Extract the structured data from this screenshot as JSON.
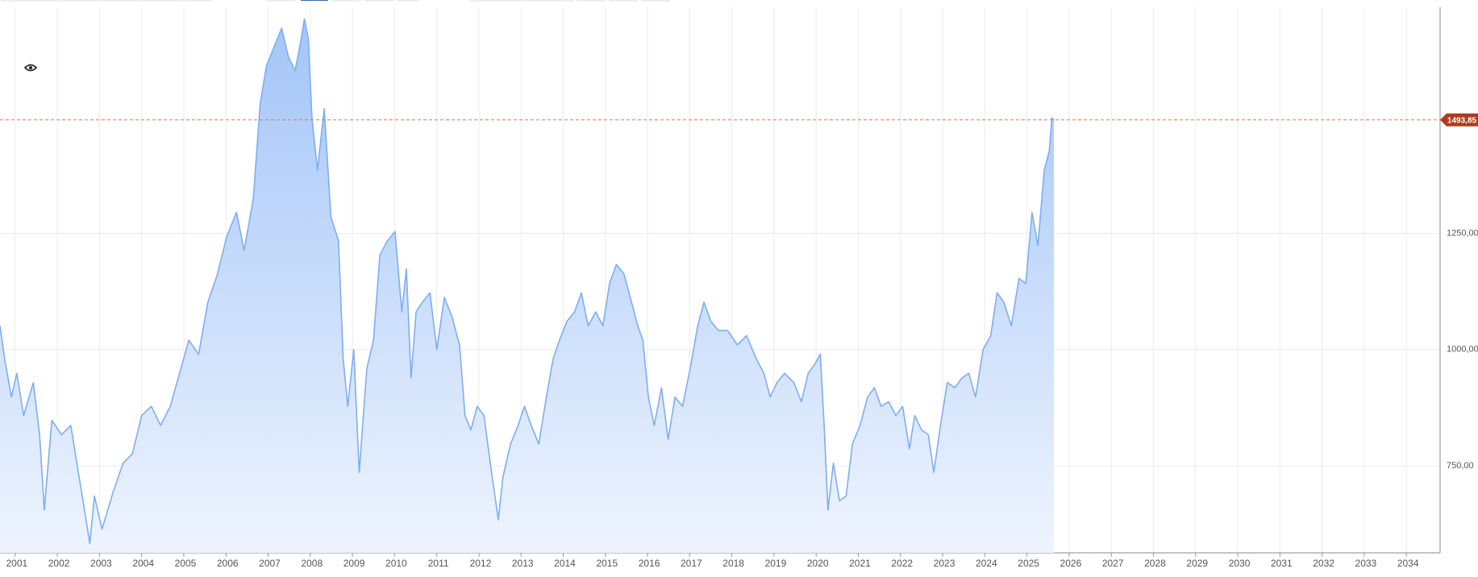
{
  "chart_data": {
    "type": "area",
    "series": [
      {
        "color": "#7eaef0",
        "x": [
          2000.64,
          2000.75,
          2000.91,
          2001.04,
          2001.2,
          2001.43,
          2001.58,
          2001.69,
          2001.87,
          2002.1,
          2002.32,
          2002.48,
          2002.61,
          2002.77,
          2002.88,
          2003.06,
          2003.33,
          2003.56,
          2003.78,
          2004.0,
          2004.23,
          2004.45,
          2004.68,
          2004.9,
          2005.12,
          2005.35,
          2005.57,
          2005.8,
          2006.02,
          2006.25,
          2006.43,
          2006.65,
          2006.81,
          2006.96,
          2007.14,
          2007.32,
          2007.48,
          2007.64,
          2007.77,
          2007.86,
          2007.95,
          2008.04,
          2008.17,
          2008.33,
          2008.49,
          2008.67,
          2008.78,
          2008.89,
          2009.03,
          2009.16,
          2009.34,
          2009.5,
          2009.65,
          2009.83,
          2010.01,
          2010.17,
          2010.28,
          2010.39,
          2010.51,
          2010.66,
          2010.84,
          2011.0,
          2011.18,
          2011.36,
          2011.54,
          2011.67,
          2011.81,
          2011.96,
          2012.12,
          2012.3,
          2012.46,
          2012.57,
          2012.75,
          2012.93,
          2013.08,
          2013.24,
          2013.42,
          2013.6,
          2013.76,
          2013.91,
          2014.09,
          2014.27,
          2014.43,
          2014.59,
          2014.77,
          2014.94,
          2015.1,
          2015.26,
          2015.44,
          2015.62,
          2015.77,
          2015.89,
          2016.02,
          2016.16,
          2016.33,
          2016.49,
          2016.65,
          2016.83,
          2017.01,
          2017.19,
          2017.34,
          2017.5,
          2017.68,
          2017.9,
          2018.13,
          2018.35,
          2018.58,
          2018.76,
          2018.91,
          2019.07,
          2019.25,
          2019.47,
          2019.65,
          2019.81,
          2019.97,
          2020.1,
          2020.19,
          2020.28,
          2020.41,
          2020.55,
          2020.71,
          2020.86,
          2021.04,
          2021.22,
          2021.38,
          2021.54,
          2021.72,
          2021.89,
          2022.05,
          2022.21,
          2022.34,
          2022.5,
          2022.66,
          2022.79,
          2022.95,
          2023.11,
          2023.29,
          2023.46,
          2023.62,
          2023.78,
          2023.96,
          2024.14,
          2024.29,
          2024.45,
          2024.63,
          2024.81,
          2024.97,
          2025.12,
          2025.26,
          2025.41,
          2025.53,
          2025.59,
          2025.64
        ],
        "values": [
          1051,
          980,
          898,
          949,
          858,
          929,
          817,
          655,
          848,
          817,
          837,
          746,
          675,
          583,
          685,
          614,
          695,
          756,
          776,
          858,
          878,
          837,
          878,
          949,
          1020,
          990,
          1102,
          1163,
          1244,
          1295,
          1213,
          1325,
          1528,
          1610,
          1650,
          1691,
          1630,
          1600,
          1661,
          1711,
          1671,
          1498,
          1386,
          1518,
          1285,
          1234,
          980,
          878,
          1000,
          736,
          959,
          1020,
          1203,
          1234,
          1254,
          1081,
          1173,
          939,
          1081,
          1102,
          1122,
          1000,
          1112,
          1071,
          1010,
          858,
          827,
          878,
          858,
          736,
          634,
          726,
          797,
          837,
          878,
          837,
          797,
          898,
          980,
          1020,
          1061,
          1081,
          1122,
          1051,
          1081,
          1051,
          1142,
          1183,
          1163,
          1102,
          1051,
          1020,
          898,
          837,
          918,
          807,
          898,
          878,
          959,
          1051,
          1102,
          1061,
          1041,
          1041,
          1010,
          1030,
          980,
          949,
          898,
          929,
          949,
          929,
          888,
          949,
          969,
          990,
          837,
          655,
          756,
          675,
          685,
          797,
          837,
          898,
          918,
          878,
          888,
          858,
          878,
          787,
          858,
          827,
          817,
          736,
          837,
          929,
          918,
          939,
          949,
          898,
          1000,
          1030,
          1122,
          1102,
          1051,
          1153,
          1142,
          1295,
          1224,
          1386,
          1427,
          1498,
          1493.85
        ]
      }
    ],
    "current_price": {
      "value": 1493.85,
      "label": "1493,85"
    },
    "xlim": [
      2000.64,
      2034.8
    ],
    "xticks": [
      2001,
      2002,
      2003,
      2004,
      2005,
      2006,
      2007,
      2008,
      2009,
      2010,
      2011,
      2012,
      2013,
      2014,
      2015,
      2016,
      2017,
      2018,
      2019,
      2020,
      2021,
      2022,
      2023,
      2024,
      2025,
      2026,
      2027,
      2028,
      2029,
      2030,
      2031,
      2032,
      2033,
      2034
    ],
    "ylim": [
      563,
      1736
    ],
    "yticks": [
      {
        "value": 750,
        "label": "750,00"
      },
      {
        "value": 1000,
        "label": "1000,00"
      },
      {
        "value": 1250,
        "label": "1250,00"
      }
    ],
    "grid": true
  }
}
